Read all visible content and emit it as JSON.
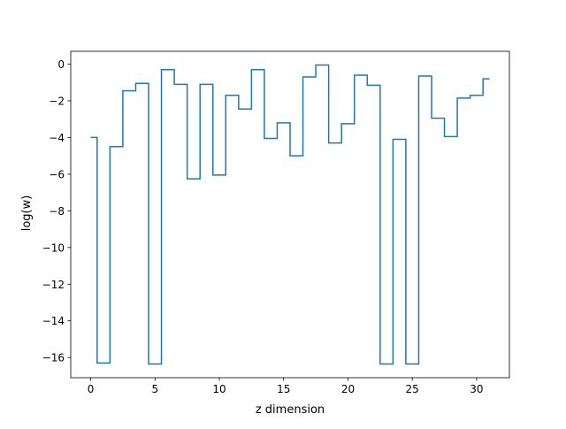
{
  "chart_data": {
    "type": "line",
    "drawstyle": "steps-mid",
    "xlabel": "z dimension",
    "ylabel": "log(w)",
    "xlim": [
      -1.55,
      32.55
    ],
    "ylim": [
      -17.1,
      0.7
    ],
    "xticks": [
      0,
      5,
      10,
      15,
      20,
      25,
      30
    ],
    "yticks": [
      0,
      -2,
      -4,
      -6,
      -8,
      -10,
      -12,
      -14,
      -16
    ],
    "grid": false,
    "series": [
      {
        "color": "#1f77b4",
        "x": [
          0,
          1,
          2,
          3,
          4,
          5,
          6,
          7,
          8,
          9,
          10,
          11,
          12,
          13,
          14,
          15,
          16,
          17,
          18,
          19,
          20,
          21,
          22,
          23,
          24,
          25,
          26,
          27,
          28,
          29,
          30,
          31
        ],
        "y": [
          -4.0,
          -16.3,
          -4.5,
          -1.45,
          -1.05,
          -16.35,
          -0.3,
          -1.1,
          -6.25,
          -1.1,
          -6.05,
          -1.7,
          -2.45,
          -0.3,
          -4.05,
          -3.2,
          -5.0,
          -0.7,
          -0.05,
          -4.3,
          -3.25,
          -0.6,
          -1.15,
          -16.35,
          -4.1,
          -16.35,
          -0.65,
          -2.95,
          -3.95,
          -1.85,
          -1.7,
          -0.8
        ]
      }
    ]
  }
}
